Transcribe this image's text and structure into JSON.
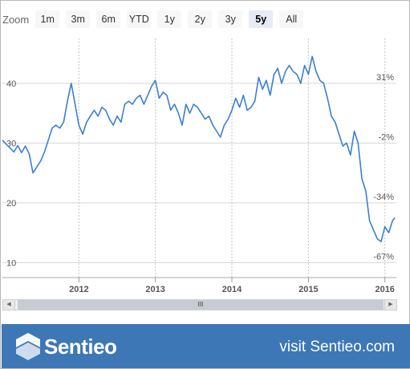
{
  "zoom": {
    "label": "Zoom",
    "buttons": [
      "1m",
      "3m",
      "6m",
      "YTD",
      "1y",
      "2y",
      "3y",
      "5y",
      "All"
    ],
    "active": "5y"
  },
  "chart_data": {
    "type": "line",
    "title": "",
    "xlabel": "",
    "ylabel": "",
    "x_ticks": [
      "2012",
      "2013",
      "2014",
      "2015",
      "2016"
    ],
    "y_ticks": [
      10,
      20,
      30,
      40
    ],
    "y_right_ticks": [
      "31%",
      "-2%",
      "-34%",
      "-67%"
    ],
    "y_right_tick_values": [
      40,
      30,
      20,
      10
    ],
    "xlim": [
      2011.0,
      2016.15
    ],
    "ylim": [
      7.5,
      47.5
    ],
    "grid": true,
    "series": [
      {
        "color": "#3a7fd4",
        "x": [
          2011.0,
          2011.05,
          2011.1,
          2011.15,
          2011.2,
          2011.25,
          2011.3,
          2011.35,
          2011.4,
          2011.45,
          2011.5,
          2011.55,
          2011.6,
          2011.65,
          2011.7,
          2011.75,
          2011.8,
          2011.85,
          2011.9,
          2011.95,
          2012.0,
          2012.05,
          2012.1,
          2012.15,
          2012.2,
          2012.25,
          2012.3,
          2012.35,
          2012.4,
          2012.45,
          2012.5,
          2012.55,
          2012.6,
          2012.65,
          2012.7,
          2012.75,
          2012.8,
          2012.85,
          2012.9,
          2012.95,
          2013.0,
          2013.05,
          2013.1,
          2013.15,
          2013.2,
          2013.25,
          2013.3,
          2013.35,
          2013.4,
          2013.45,
          2013.5,
          2013.55,
          2013.6,
          2013.65,
          2013.7,
          2013.75,
          2013.8,
          2013.85,
          2013.9,
          2013.95,
          2014.0,
          2014.05,
          2014.1,
          2014.15,
          2014.2,
          2014.25,
          2014.3,
          2014.35,
          2014.4,
          2014.45,
          2014.5,
          2014.55,
          2014.6,
          2014.65,
          2014.7,
          2014.75,
          2014.8,
          2014.85,
          2014.9,
          2014.95,
          2015.0,
          2015.05,
          2015.1,
          2015.15,
          2015.2,
          2015.25,
          2015.3,
          2015.35,
          2015.4,
          2015.45,
          2015.5,
          2015.55,
          2015.6,
          2015.65,
          2015.7,
          2015.75,
          2015.8,
          2015.85,
          2015.9,
          2015.95,
          2016.0,
          2016.05,
          2016.1,
          2016.13
        ],
        "y": [
          30.5,
          29.8,
          29.2,
          28.5,
          29.6,
          28.4,
          29.5,
          28.2,
          25.0,
          26.0,
          27.0,
          28.5,
          30.5,
          32.5,
          33.0,
          32.5,
          33.5,
          37.0,
          40.0,
          36.5,
          33.0,
          31.5,
          33.5,
          34.5,
          35.5,
          34.5,
          36.0,
          35.5,
          34.0,
          33.0,
          34.5,
          33.5,
          36.5,
          37.0,
          36.5,
          37.5,
          38.0,
          36.5,
          38.0,
          39.5,
          40.5,
          37.5,
          38.5,
          38.0,
          35.5,
          36.5,
          35.0,
          33.0,
          36.5,
          35.0,
          36.5,
          36.0,
          35.0,
          34.0,
          34.5,
          33.0,
          32.0,
          31.0,
          33.0,
          34.0,
          35.5,
          37.5,
          36.0,
          38.0,
          35.5,
          36.0,
          37.0,
          41.0,
          39.0,
          40.5,
          38.0,
          41.5,
          42.5,
          40.0,
          42.0,
          43.0,
          42.0,
          41.5,
          40.0,
          43.0,
          41.5,
          44.5,
          42.0,
          40.5,
          40.0,
          37.5,
          34.5,
          33.5,
          31.5,
          29.5,
          30.0,
          28.0,
          32.0,
          30.0,
          24.0,
          22.0,
          17.0,
          15.5,
          14.0,
          13.5,
          16.0,
          15.0,
          17.0,
          17.5
        ]
      }
    ]
  },
  "footer": {
    "brand": "Sentieo",
    "visit": "visit Sentieo.com"
  }
}
